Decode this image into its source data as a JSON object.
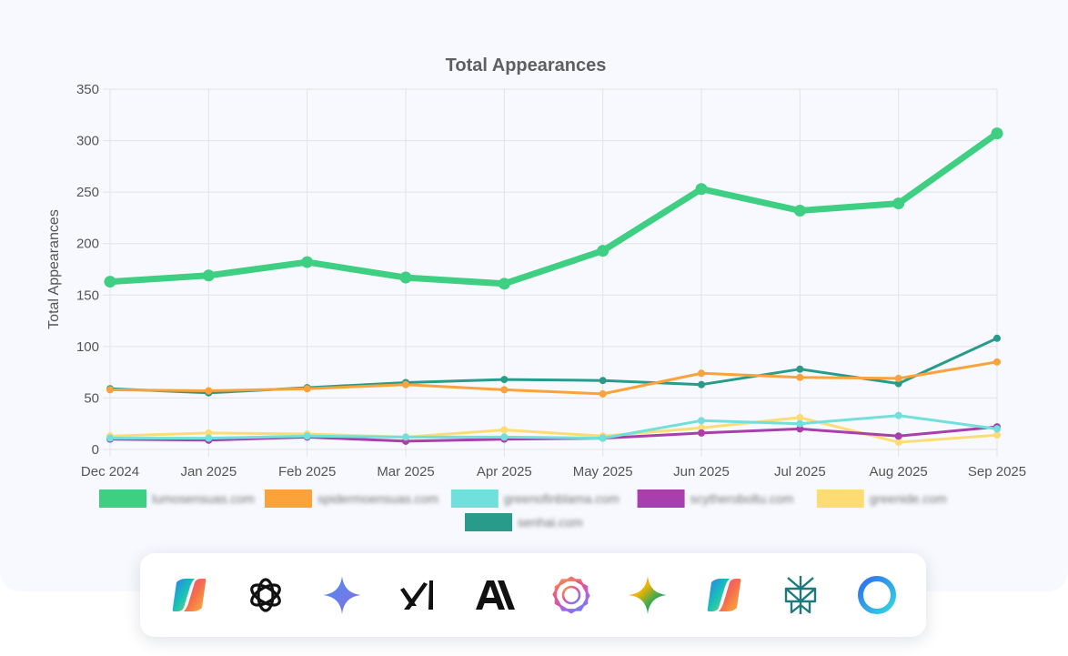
{
  "chart_data": {
    "type": "line",
    "title": "Total Appearances",
    "ylabel": "Total Appearances",
    "xlabel": "",
    "ylim": [
      0,
      350
    ],
    "yticks": [
      0,
      50,
      100,
      150,
      200,
      250,
      300,
      350
    ],
    "grid": true,
    "legend_position": "bottom",
    "categories": [
      "Dec 2024",
      "Jan 2025",
      "Feb 2025",
      "Mar 2025",
      "Apr 2025",
      "May 2025",
      "Jun 2025",
      "Jul 2025",
      "Aug 2025",
      "Sep 2025"
    ],
    "series": [
      {
        "name": "lumosensuas.com",
        "color": "#3ecf83",
        "width": 7,
        "radius": 6.5,
        "values": [
          163,
          169,
          182,
          167,
          161,
          193,
          253,
          232,
          239,
          307
        ]
      },
      {
        "name": "spidermoensuas.com",
        "color": "#fba23a",
        "width": 3,
        "radius": 4,
        "values": [
          58,
          57,
          59,
          63,
          58,
          54,
          74,
          70,
          69,
          85
        ]
      },
      {
        "name": "greenofinblama.com",
        "color": "#6fe0db",
        "width": 3,
        "radius": 4,
        "values": [
          11,
          11,
          13,
          12,
          12,
          11,
          28,
          25,
          33,
          20
        ]
      },
      {
        "name": "scytheroboltu.com",
        "color": "#a93fad",
        "width": 3,
        "radius": 4,
        "values": [
          10,
          9,
          12,
          8,
          10,
          11,
          16,
          20,
          13,
          22
        ]
      },
      {
        "name": "greenide.com",
        "color": "#fddd73",
        "width": 3,
        "radius": 4,
        "values": [
          13,
          16,
          15,
          12,
          19,
          13,
          21,
          31,
          7,
          14
        ]
      },
      {
        "name": "senhai.com",
        "color": "#299b8a",
        "width": 3,
        "radius": 4,
        "values": [
          59,
          55,
          60,
          65,
          68,
          67,
          63,
          78,
          64,
          108
        ]
      }
    ]
  },
  "model_icons": [
    {
      "name": "copilot-icon"
    },
    {
      "name": "chatgpt-icon"
    },
    {
      "name": "gemini-sparkle-icon"
    },
    {
      "name": "grok-xai-icon"
    },
    {
      "name": "anthropic-icon"
    },
    {
      "name": "meta-ai-icon"
    },
    {
      "name": "gemini-color-sparkle-icon"
    },
    {
      "name": "copilot-icon-2"
    },
    {
      "name": "perplexity-icon"
    },
    {
      "name": "ring-assistant-icon"
    }
  ]
}
